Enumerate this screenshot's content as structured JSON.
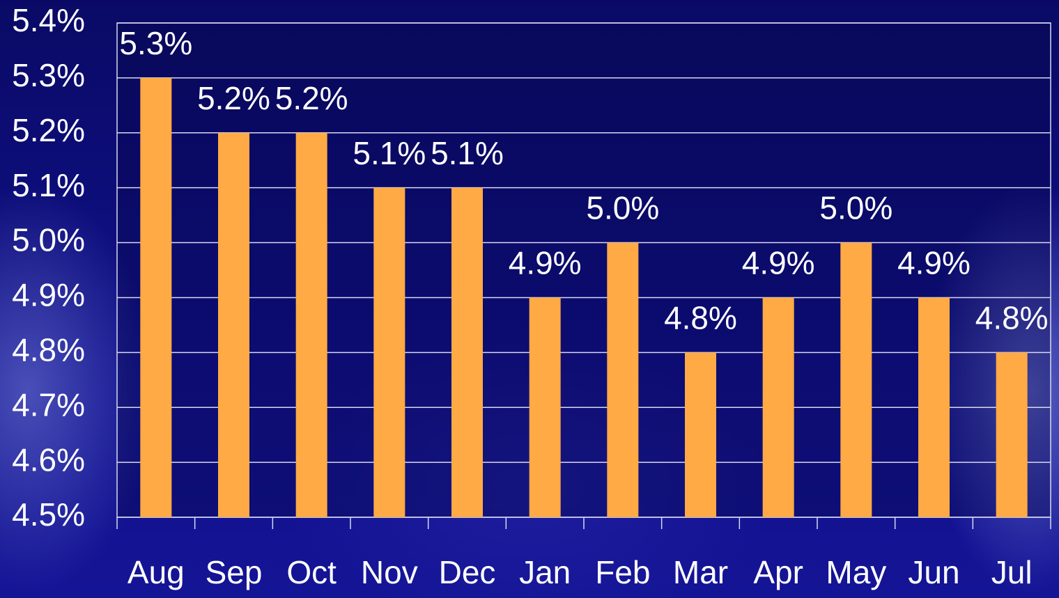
{
  "chart_data": {
    "type": "bar",
    "categories": [
      "Aug",
      "Sep",
      "Oct",
      "Nov",
      "Dec",
      "Jan",
      "Feb",
      "Mar",
      "Apr",
      "May",
      "Jun",
      "Jul"
    ],
    "values": [
      5.3,
      5.2,
      5.2,
      5.1,
      5.1,
      4.9,
      5.0,
      4.8,
      4.9,
      5.0,
      4.9,
      4.8
    ],
    "value_labels": [
      "5.3%",
      "5.2%",
      "5.2%",
      "5.1%",
      "5.1%",
      "4.9%",
      "5.0%",
      "4.8%",
      "4.9%",
      "5.0%",
      "4.9%",
      "4.8%"
    ],
    "color": "#ffaa44",
    "ylim": [
      4.5,
      5.4
    ],
    "yticks": [
      {
        "value": 4.5,
        "label": "4.5%"
      },
      {
        "value": 4.6,
        "label": "4.6%"
      },
      {
        "value": 4.7,
        "label": "4.7%"
      },
      {
        "value": 4.8,
        "label": "4.8%"
      },
      {
        "value": 4.9,
        "label": "4.9%"
      },
      {
        "value": 5.0,
        "label": "5.0%"
      },
      {
        "value": 5.1,
        "label": "5.1%"
      },
      {
        "value": 5.2,
        "label": "5.2%"
      },
      {
        "value": 5.3,
        "label": "5.3%"
      },
      {
        "value": 5.4,
        "label": "5.4%"
      }
    ],
    "grid": true
  }
}
